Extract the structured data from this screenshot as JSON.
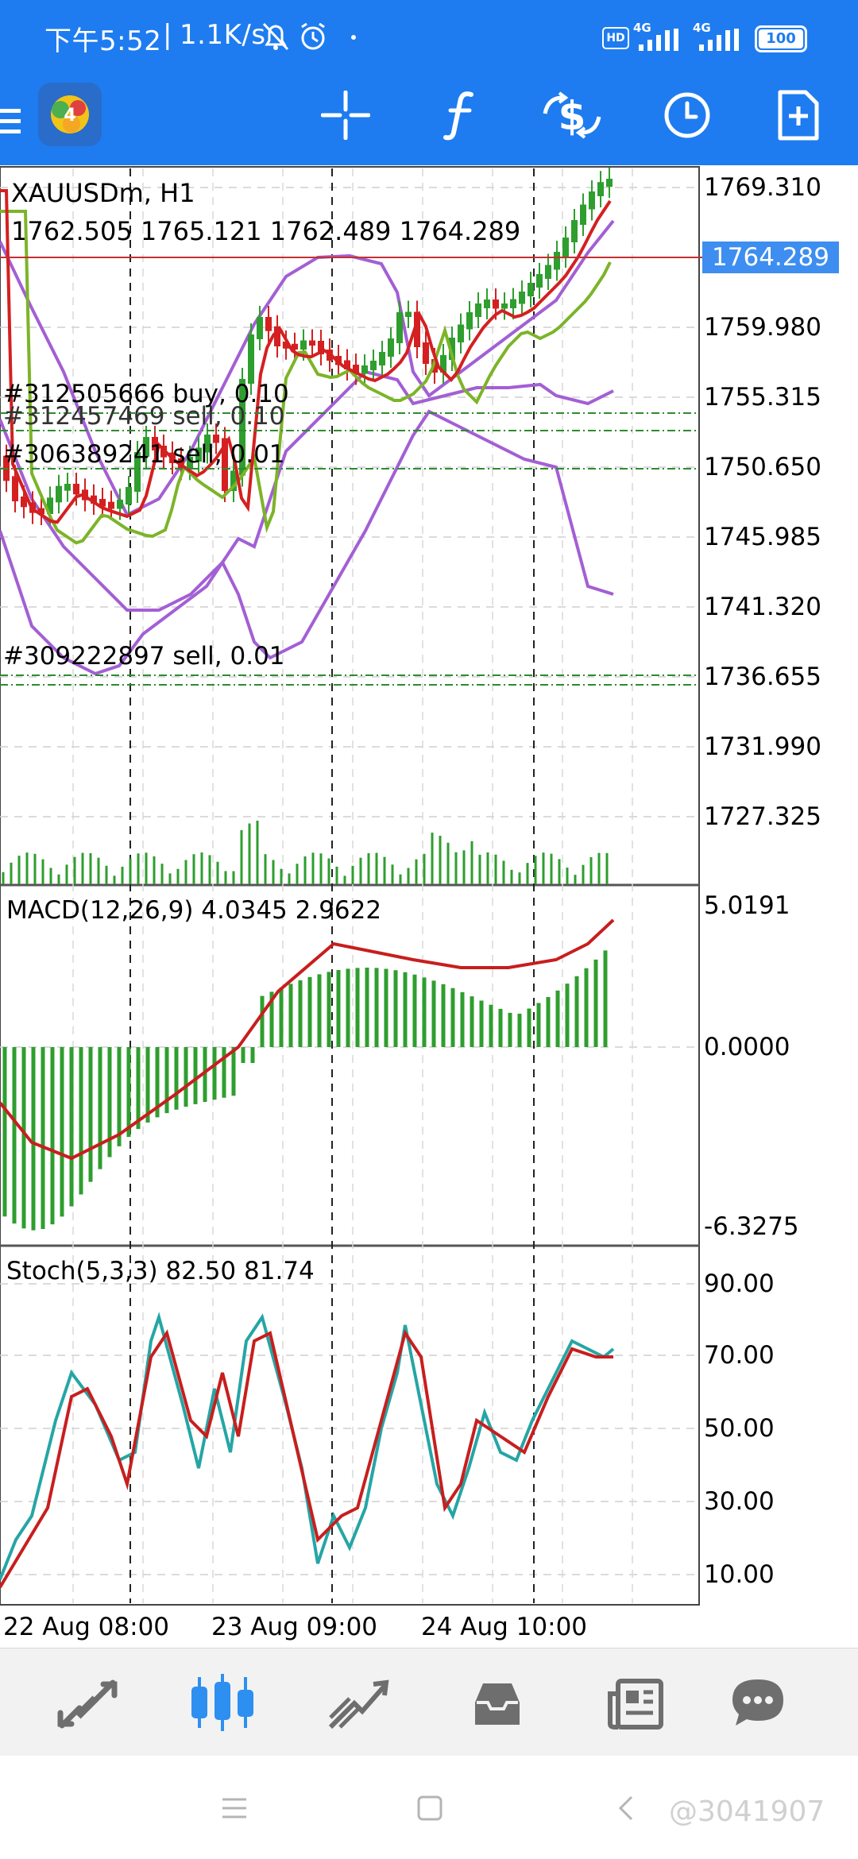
{
  "status_bar": {
    "time": "下午5:52",
    "speed": "1.1K/s",
    "network_1": "4G",
    "network_2": "4G",
    "battery": "100"
  },
  "toolbar": {
    "icons": [
      "menu-icon",
      "app-logo-icon",
      "crosshair-icon",
      "function-icon",
      "dollar-swap-icon",
      "clock-icon",
      "new-document-icon"
    ]
  },
  "main_chart": {
    "symbol": "XAUUSDm, H1",
    "ohlc": "1762.505 1765.121 1762.489 1764.289",
    "current_price": "1764.289",
    "price_scale": [
      "1769.310",
      "1759.980",
      "1755.315",
      "1750.650",
      "1745.985",
      "1741.320",
      "1736.655",
      "1731.990",
      "1727.325"
    ],
    "orders": [
      {
        "text": "#312505666 buy, 0.10"
      },
      {
        "text": "#312457469 sell, 0.10"
      },
      {
        "text": "#306389241 sell, 0.01"
      },
      {
        "text": "#309222897 sell, 0.01"
      }
    ],
    "colors": {
      "bull": "#2e9e2e",
      "bear": "#d42020",
      "ma_fast": "#d42020",
      "ma_slow": "#7cb428",
      "bands": "#a35fd4"
    }
  },
  "macd": {
    "label": "MACD(12,26,9) 4.0345 2.9622",
    "scale": [
      "5.0191",
      "0.0000",
      "-6.3275"
    ]
  },
  "stoch": {
    "label": "Stoch(5,3,3) 82.50 81.74",
    "scale": [
      "90.00",
      "70.00",
      "50.00",
      "30.00",
      "10.00"
    ]
  },
  "time_axis": [
    "22 Aug 08:00",
    "23 Aug 09:00",
    "24 Aug 10:00"
  ],
  "bottom_nav": {
    "items": [
      "quotes-icon",
      "chart-icon",
      "trade-icon",
      "history-icon",
      "news-icon",
      "chat-icon"
    ],
    "active": "chart-icon"
  },
  "watermark": "@3041907"
}
